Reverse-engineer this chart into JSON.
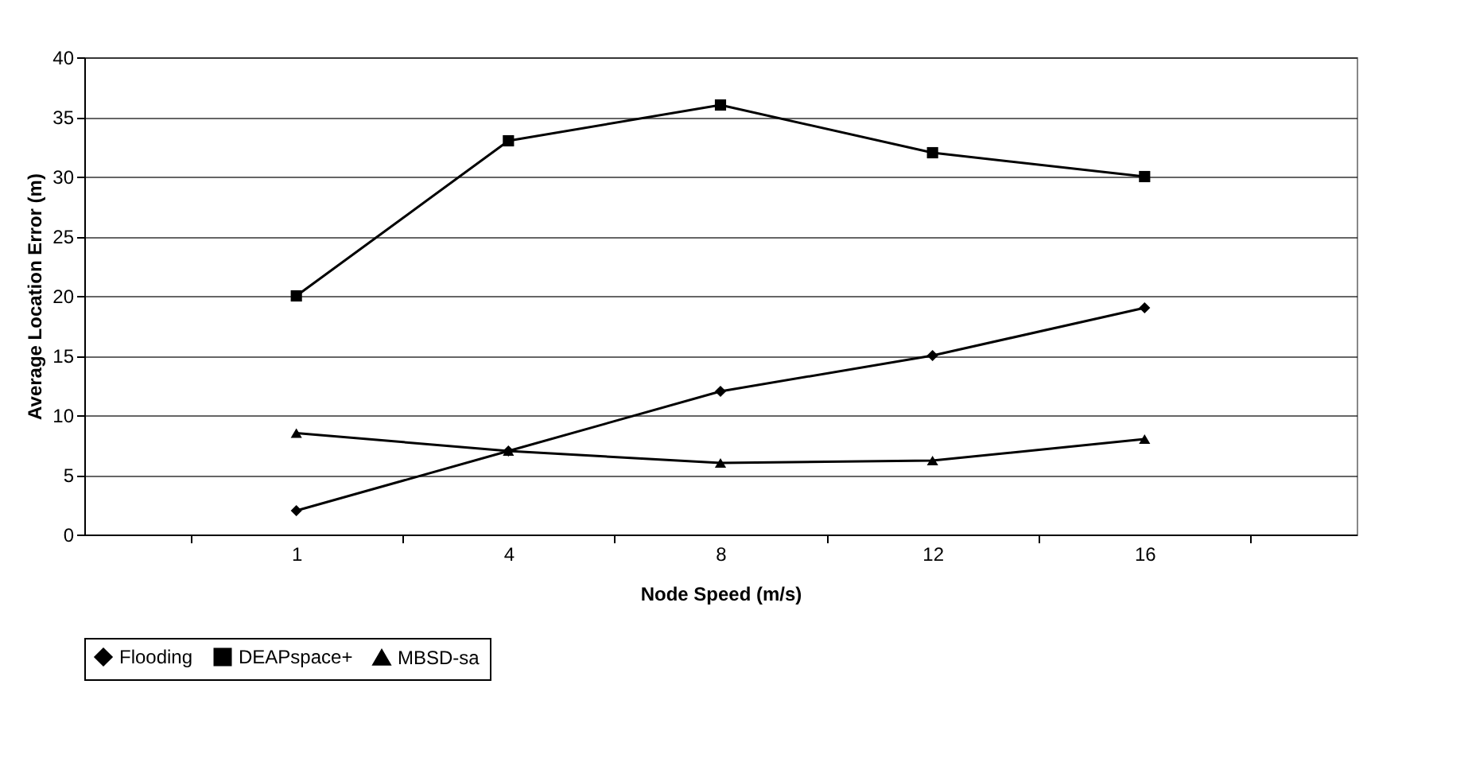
{
  "chart_data": {
    "type": "line",
    "xlabel": "Node Speed (m/s)",
    "ylabel": "Average Location Error (m)",
    "categories": [
      "1",
      "4",
      "8",
      "12",
      "16"
    ],
    "series": [
      {
        "name": "Flooding",
        "color": "#000000",
        "marker": "diamond",
        "values": [
          2,
          7,
          12,
          15,
          19
        ]
      },
      {
        "name": "DEAPspace+",
        "color": "#000000",
        "marker": "square",
        "values": [
          20,
          33,
          36,
          32,
          30
        ]
      },
      {
        "name": "MBSD-sa",
        "color": "#000000",
        "marker": "triangle",
        "values": [
          8.5,
          7,
          6,
          6.2,
          8
        ]
      }
    ],
    "ylim": [
      0,
      40
    ],
    "yticks": [
      0,
      5,
      10,
      15,
      20,
      25,
      30,
      35,
      40
    ],
    "grid": "y",
    "legend": "bottom",
    "line_style": "solid"
  }
}
